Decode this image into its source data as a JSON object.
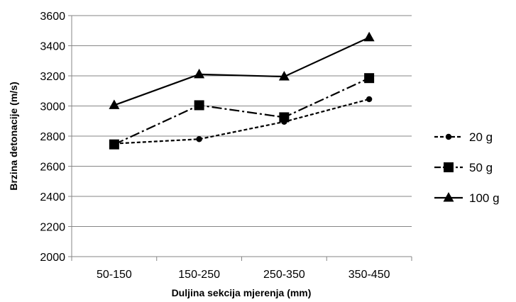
{
  "chart_data": {
    "type": "line",
    "categories": [
      "50-150",
      "150-250",
      "250-350",
      "350-450"
    ],
    "xlabel": "Duljina sekcija mjerenja (mm)",
    "ylabel": "Brzina detonacije (m/s)",
    "ylim": [
      2000,
      3600
    ],
    "yticks": [
      "2000",
      "2200",
      "2400",
      "2600",
      "2800",
      "3000",
      "3200",
      "3400",
      "3600"
    ],
    "grid": "horizontal",
    "legend_position": "right",
    "series": [
      {
        "name": "20 g",
        "values": [
          2750,
          2780,
          2895,
          3045
        ],
        "marker": "circle",
        "dash": "short-dash"
      },
      {
        "name": "50 g",
        "values": [
          2745,
          3005,
          2925,
          3185
        ],
        "marker": "square",
        "dash": "dash-dot"
      },
      {
        "name": "100 g",
        "values": [
          3005,
          3210,
          3195,
          3455
        ],
        "marker": "triangle",
        "dash": "solid"
      }
    ]
  }
}
